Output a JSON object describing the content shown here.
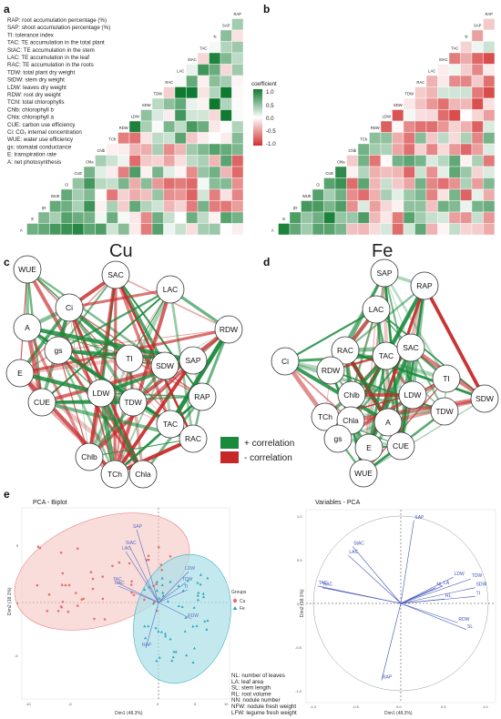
{
  "panel_labels": [
    "a",
    "b",
    "c",
    "d",
    "e"
  ],
  "heat_variables_a": [
    "RAP",
    "SAP",
    "TI",
    "TAC",
    "StAC",
    "LAC",
    "RAC",
    "TDW",
    "SDW",
    "LDW",
    "RDW",
    "TCh",
    "Chlb",
    "Chla",
    "CUE",
    "Ci",
    "WUE",
    "gs",
    "E",
    "A"
  ],
  "heat_variables_b": [
    "RAP",
    "SAP",
    "TI",
    "TAC",
    "StAC",
    "LAC",
    "RAC",
    "TDW",
    "SDW",
    "LDW",
    "RDW",
    "TCh",
    "Chlb",
    "Chla",
    "CUE",
    "Ci",
    "WUE",
    "gs",
    "E",
    "A"
  ],
  "abbrev_legend": [
    "RAP: root accumulation percentage (%)",
    "SAP: shoot accumulation percentage (%)",
    "TI: tolerance index",
    "TAC: TE accumulation in the total plant",
    "StAC: TE accumulation in the stem",
    "LAC: TE accumulation in the leaf",
    "RAC: TE accumulation in the roots",
    "TDW: total plant dry weight",
    "StDW: stem dry weight",
    "LDW: leaves dry weight",
    "RDW: root dry weight",
    "TChl: total chlorophylls",
    "Chlb: chlorophyll b",
    "Chla: chlorophyll a",
    "CUE: carbon use efficiency",
    "Ci: CO₂ internal concentration",
    "WUE: water use efficiency",
    "gs: stomatal conductance",
    "E: transpiration rate",
    "A: net photosynthesis"
  ],
  "colorbar": {
    "title": "coefficient",
    "ticks": [
      "1.0",
      "0.5",
      "0.0",
      "-0.5",
      "-1.0"
    ]
  },
  "titles": {
    "cu": "Cu",
    "fe": "Fe"
  },
  "network_legend": {
    "pos": "+ correlation",
    "neg": "- correlation",
    "pos_color": "#1a8a3c",
    "neg_color": "#c62828"
  },
  "nodes_c": [
    "WUE",
    "SAC",
    "LAC",
    "Ci",
    "A",
    "RDW",
    "gs",
    "TI",
    "SDW",
    "SAP",
    "E",
    "CUE",
    "LDW",
    "TDW",
    "RAP",
    "TAC",
    "RAC",
    "Chlb",
    "TCh",
    "Chla"
  ],
  "nodes_d": [
    "SAP",
    "RAP",
    "LAC",
    "RAC",
    "TAC",
    "SAC",
    "Ci",
    "RDW",
    "TI",
    "Chlb",
    "LDW",
    "SDW",
    "TDW",
    "TCh",
    "Chla",
    "A",
    "gs",
    "E",
    "CUE",
    "WUE"
  ],
  "pca_biplot": {
    "title": "PCA - Biplot",
    "xlabel": "Dim1 (48.3%)",
    "ylabel": "Dim2 (18.1%)",
    "xticks": [
      "-10",
      "-5",
      "0",
      "5",
      "10"
    ],
    "yticks": [
      "5",
      "0",
      "-5"
    ],
    "legend_title": "Groups",
    "groups": [
      "Cu",
      "Fe"
    ],
    "var_labels": [
      "SAP",
      "StAC",
      "LAC",
      "TAC",
      "RAC",
      "LDW",
      "TDW",
      "RDW",
      "RAP",
      "TI"
    ],
    "colors": {
      "cu": "#e57373",
      "fe": "#26a6b8"
    }
  },
  "pca_variables": {
    "title": "Variables - PCA",
    "xlabel": "Dim1 (48.3%)",
    "ylabel": "Dim2 (18.1%)",
    "xticks": [
      "-1.0",
      "-0.5",
      "0.0",
      "0.5",
      "1.0"
    ],
    "yticks": [
      "1.0",
      "0.5",
      "0.0",
      "-0.5",
      "-1.0"
    ],
    "vars": [
      "SAP",
      "StAC",
      "LAC",
      "TAC",
      "RAC",
      "LDW",
      "TDW",
      "SDW",
      "TI",
      "RDW",
      "SL",
      "RAP",
      "NL",
      "LA",
      "RL"
    ]
  },
  "pca_notes": [
    "NL: number of leaves",
    "LA: leaf area",
    "SL: stem length",
    "RL: root volume",
    "NN: nodule number",
    "NFW: nodule fresh weight",
    "LFW: legume fresh weight"
  ]
}
